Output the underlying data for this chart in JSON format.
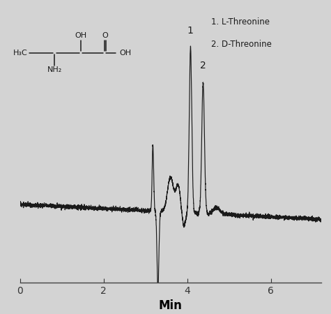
{
  "background_color": "#d3d3d3",
  "line_color": "#1a1a1a",
  "xlim": [
    0,
    7.2
  ],
  "xlabel": "Min",
  "xlabel_fontsize": 12,
  "xticks": [
    0,
    2,
    4,
    6
  ],
  "legend_text": [
    "1. L-Threonine",
    "2. D-Threonine"
  ],
  "peak1_label": "1",
  "peak2_label": "2"
}
